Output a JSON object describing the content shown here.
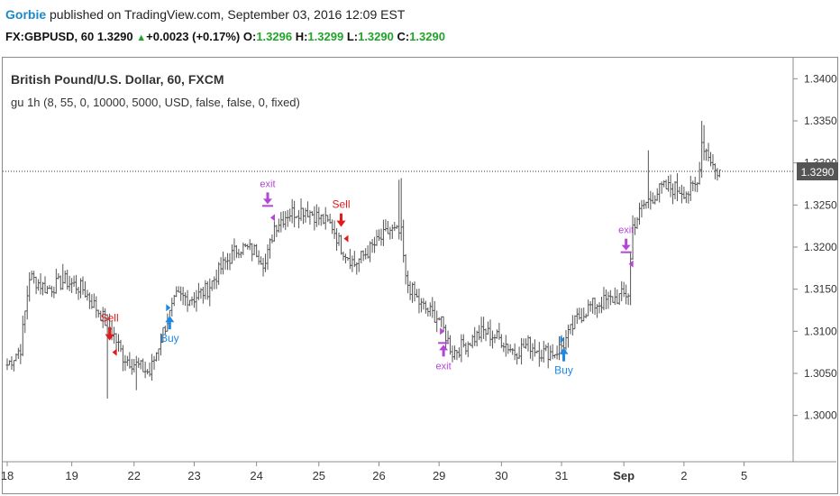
{
  "publish": {
    "user": "Gorbie",
    "text": " published on TradingView.com, September 03, 2016 12:09 EST"
  },
  "quote": {
    "symbol": "FX:GBPUSD, 60",
    "last": "1.3290",
    "change": "+0.0023 (+0.17%)",
    "o_label": "O:",
    "o": "1.3296",
    "h_label": "H:",
    "h": "1.3299",
    "l_label": "L:",
    "l": "1.3290",
    "c_label": "C:",
    "c": "1.3290",
    "up_color": "#22a32a"
  },
  "legend": {
    "title": "British Pound/U.S. Dollar, 60, FXCM",
    "study": "gu 1h (8, 55, 0, 10000, 5000, USD, false, false, 0, fixed)"
  },
  "chart_data": {
    "type": "ohlc",
    "symbol": "GBPUSD",
    "interval": "60",
    "ylim": [
      1.2945,
      1.3425
    ],
    "yticks": [
      "1.3400",
      "1.3350",
      "1.3300",
      "1.3250",
      "1.3200",
      "1.3150",
      "1.3100",
      "1.3050",
      "1.3000"
    ],
    "ytick_values": [
      1.34,
      1.335,
      1.33,
      1.325,
      1.32,
      1.315,
      1.31,
      1.305,
      1.3
    ],
    "last_price": 1.329,
    "last_price_label": "1.3290",
    "xticks": [
      "18",
      "19",
      "22",
      "23",
      "24",
      "25",
      "26",
      "29",
      "30",
      "31",
      "Sep",
      "2",
      "5"
    ],
    "xtick_index": [
      0,
      29,
      57,
      84,
      112,
      140,
      167,
      194,
      222,
      249,
      277,
      304,
      331
    ],
    "bar_color": "#555555",
    "waypoints": [
      [
        0,
        1.306
      ],
      [
        6,
        1.308
      ],
      [
        10,
        1.3165
      ],
      [
        18,
        1.315
      ],
      [
        26,
        1.316
      ],
      [
        34,
        1.315
      ],
      [
        42,
        1.312
      ],
      [
        48,
        1.3095
      ],
      [
        52,
        1.307
      ],
      [
        58,
        1.306
      ],
      [
        64,
        1.305
      ],
      [
        70,
        1.31
      ],
      [
        76,
        1.314
      ],
      [
        84,
        1.314
      ],
      [
        90,
        1.315
      ],
      [
        96,
        1.3175
      ],
      [
        104,
        1.32
      ],
      [
        112,
        1.3195
      ],
      [
        116,
        1.318
      ],
      [
        120,
        1.3225
      ],
      [
        126,
        1.324
      ],
      [
        134,
        1.3245
      ],
      [
        140,
        1.3235
      ],
      [
        146,
        1.3225
      ],
      [
        150,
        1.32
      ],
      [
        156,
        1.318
      ],
      [
        164,
        1.32
      ],
      [
        172,
        1.322
      ],
      [
        177,
        1.3215
      ],
      [
        179,
        1.316
      ],
      [
        186,
        1.313
      ],
      [
        194,
        1.3115
      ],
      [
        200,
        1.3075
      ],
      [
        206,
        1.3085
      ],
      [
        214,
        1.31
      ],
      [
        222,
        1.309
      ],
      [
        228,
        1.3075
      ],
      [
        234,
        1.3085
      ],
      [
        240,
        1.3075
      ],
      [
        246,
        1.3075
      ],
      [
        250,
        1.3085
      ],
      [
        256,
        1.3115
      ],
      [
        262,
        1.313
      ],
      [
        268,
        1.3135
      ],
      [
        274,
        1.314
      ],
      [
        279,
        1.3145
      ],
      [
        281,
        1.3225
      ],
      [
        286,
        1.325
      ],
      [
        294,
        1.327
      ],
      [
        300,
        1.327
      ],
      [
        306,
        1.3265
      ],
      [
        310,
        1.3275
      ],
      [
        312,
        1.3325
      ],
      [
        316,
        1.3305
      ],
      [
        318,
        1.329
      ],
      [
        320,
        1.329
      ]
    ],
    "spikes": [
      {
        "i": 11,
        "h": 1.3172
      },
      {
        "i": 25,
        "h": 1.318
      },
      {
        "i": 58,
        "l": 1.303
      },
      {
        "i": 45,
        "l": 1.302
      },
      {
        "i": 176,
        "h": 1.328
      },
      {
        "i": 177,
        "h": 1.3282
      },
      {
        "i": 288,
        "h": 1.3315
      },
      {
        "i": 312,
        "h": 1.335
      },
      {
        "i": 313,
        "h": 1.3345
      }
    ],
    "signals": [
      {
        "index": 46,
        "label": "Sell",
        "kind": "sell",
        "color": "#e01b1b",
        "price": 1.3075
      },
      {
        "index": 73,
        "label": "Buy",
        "kind": "buy",
        "color": "#1e88e5",
        "price": 1.3128
      },
      {
        "index": 117,
        "label": "exit",
        "kind": "exit-down",
        "color": "#b445d6",
        "price": 1.3235
      },
      {
        "index": 150,
        "label": "Sell",
        "kind": "sell",
        "color": "#e01b1b",
        "price": 1.321
      },
      {
        "index": 196,
        "label": "exit",
        "kind": "exit-up",
        "color": "#b445d6",
        "price": 1.31
      },
      {
        "index": 250,
        "label": "Buy",
        "kind": "buy",
        "color": "#1e88e5",
        "price": 1.309
      },
      {
        "index": 278,
        "label": "exit",
        "kind": "exit-down",
        "color": "#b445d6",
        "price": 1.318
      }
    ]
  }
}
